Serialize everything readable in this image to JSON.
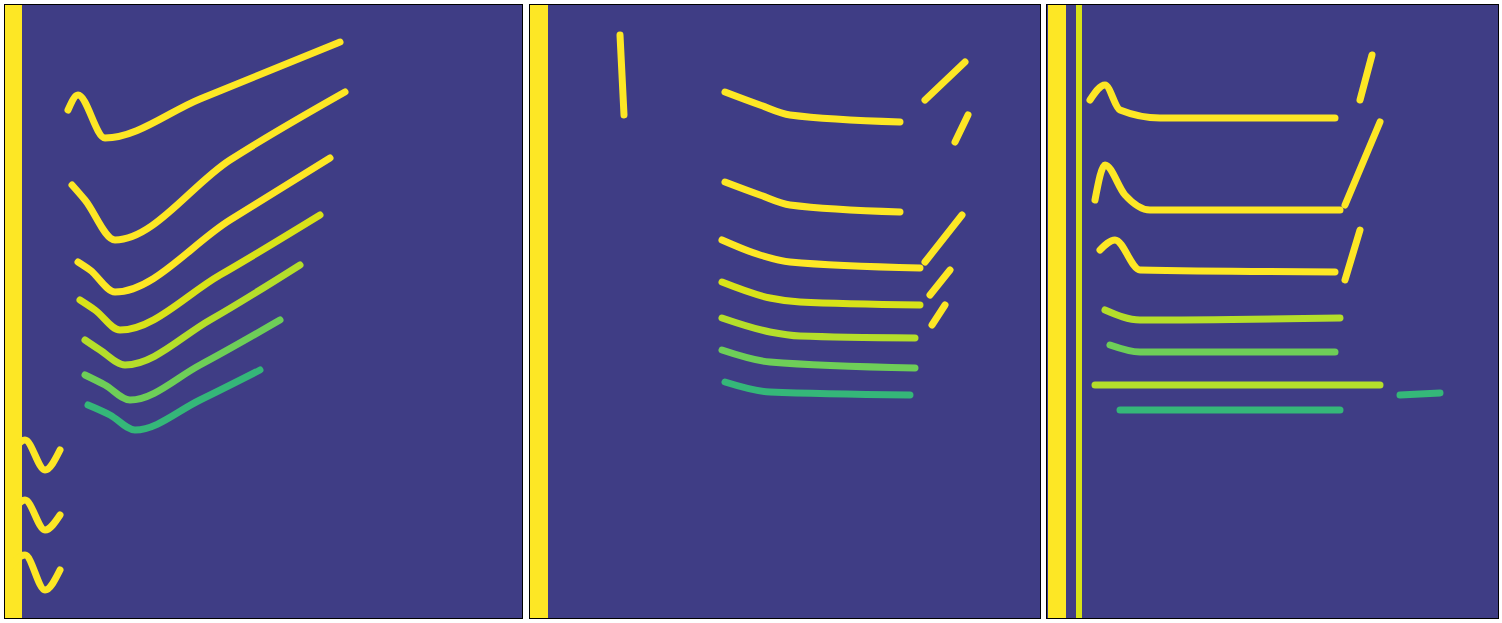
{
  "chart_data": [
    {
      "type": "line",
      "xlim": [
        0,
        517
      ],
      "ylim": [
        0,
        613
      ],
      "tick_labels": false,
      "series": [
        {
          "color": "#fde725",
          "x": [
            8,
            8
          ],
          "values": [
            0,
            613
          ]
        },
        {
          "color": "#fde725",
          "x": [
            63,
            73,
            100,
            195,
            335
          ],
          "values": [
            508,
            523,
            480,
            519,
            576
          ]
        },
        {
          "color": "#fde725",
          "x": [
            67,
            80,
            110,
            225,
            340
          ],
          "values": [
            433,
            418,
            378,
            458,
            526
          ]
        },
        {
          "color": "#fde725",
          "x": [
            73,
            85,
            110,
            225,
            325
          ],
          "values": [
            356,
            348,
            326,
            398,
            460
          ]
        },
        {
          "color": "#d8e219",
          "x": [
            75,
            90,
            115,
            215,
            315
          ],
          "values": [
            318,
            308,
            288,
            343,
            403
          ]
        },
        {
          "color": "#b5de2b",
          "x": [
            80,
            95,
            120,
            205,
            295
          ],
          "values": [
            278,
            268,
            253,
            298,
            353
          ]
        },
        {
          "color": "#6ece58",
          "x": [
            80,
            100,
            125,
            195,
            275
          ],
          "values": [
            243,
            233,
            218,
            253,
            298
          ]
        },
        {
          "color": "#35b779",
          "x": [
            83,
            105,
            130,
            195,
            255
          ],
          "values": [
            213,
            203,
            188,
            218,
            248
          ]
        },
        {
          "color": "#fde725",
          "x": [
            3,
            20,
            40,
            55
          ],
          "values": [
            158,
            178,
            148,
            168
          ]
        },
        {
          "color": "#fde725",
          "x": [
            3,
            20,
            40,
            55
          ],
          "values": [
            98,
            118,
            88,
            103
          ]
        },
        {
          "color": "#fde725",
          "x": [
            3,
            20,
            40,
            55
          ],
          "values": [
            48,
            63,
            28,
            48
          ]
        }
      ]
    },
    {
      "type": "line",
      "xlim": [
        0,
        510
      ],
      "ylim": [
        0,
        613
      ],
      "tick_labels": false,
      "series": [
        {
          "color": "#fde725",
          "x": [
            9,
            9
          ],
          "values": [
            0,
            613
          ]
        },
        {
          "color": "#fde725",
          "x": [
            90,
            94
          ],
          "values": [
            583,
            503
          ]
        },
        {
          "color": "#fde725",
          "x": [
            195,
            230,
            260,
            370
          ],
          "values": [
            526,
            513,
            503,
            496
          ]
        },
        {
          "color": "#fde725",
          "x": [
            395,
            435
          ],
          "values": [
            518,
            556
          ]
        },
        {
          "color": "#fde725",
          "x": [
            425,
            438
          ],
          "values": [
            476,
            503
          ]
        },
        {
          "color": "#fde725",
          "x": [
            195,
            230,
            260,
            370
          ],
          "values": [
            436,
            423,
            413,
            406
          ]
        },
        {
          "color": "#fde725",
          "x": [
            395,
            432
          ],
          "values": [
            356,
            403
          ]
        },
        {
          "color": "#fde725",
          "x": [
            192,
            230,
            260,
            390
          ],
          "values": [
            378,
            363,
            356,
            350
          ]
        },
        {
          "color": "#fde725",
          "x": [
            400,
            420
          ],
          "values": [
            323,
            348
          ]
        },
        {
          "color": "#d8e219",
          "x": [
            192,
            240,
            270,
            390
          ],
          "values": [
            336,
            320,
            316,
            313
          ]
        },
        {
          "color": "#fde725",
          "x": [
            402,
            415
          ],
          "values": [
            293,
            313
          ]
        },
        {
          "color": "#b5de2b",
          "x": [
            192,
            240,
            270,
            385
          ],
          "values": [
            300,
            286,
            282,
            280
          ]
        },
        {
          "color": "#6ece58",
          "x": [
            192,
            240,
            385
          ],
          "values": [
            268,
            256,
            250
          ]
        },
        {
          "color": "#35b779",
          "x": [
            195,
            240,
            380
          ],
          "values": [
            236,
            226,
            223
          ]
        }
      ]
    },
    {
      "type": "line",
      "xlim": [
        0,
        451
      ],
      "ylim": [
        0,
        613
      ],
      "tick_labels": false,
      "series": [
        {
          "color": "#fde725",
          "x": [
            10,
            10
          ],
          "values": [
            0,
            613
          ]
        },
        {
          "color": "#d8e219",
          "x": [
            32,
            32
          ],
          "values": [
            0,
            613
          ]
        },
        {
          "color": "#fde725",
          "x": [
            43,
            58,
            73,
            113,
            288
          ],
          "values": [
            518,
            533,
            508,
            500,
            500
          ]
        },
        {
          "color": "#fde725",
          "x": [
            313,
            325
          ],
          "values": [
            518,
            563
          ]
        },
        {
          "color": "#fde725",
          "x": [
            48,
            58,
            78,
            103,
            293
          ],
          "values": [
            418,
            453,
            423,
            408,
            408
          ]
        },
        {
          "color": "#fde725",
          "x": [
            298,
            333
          ],
          "values": [
            413,
            496
          ]
        },
        {
          "color": "#fde725",
          "x": [
            53,
            68,
            93,
            288
          ],
          "values": [
            368,
            378,
            348,
            346
          ]
        },
        {
          "color": "#fde725",
          "x": [
            298,
            313
          ],
          "values": [
            338,
            388
          ]
        },
        {
          "color": "#b5de2b",
          "x": [
            58,
            93,
            293
          ],
          "values": [
            308,
            298,
            300
          ]
        },
        {
          "color": "#6ece58",
          "x": [
            63,
            93,
            288
          ],
          "values": [
            273,
            266,
            266
          ]
        },
        {
          "color": "#b5de2b",
          "x": [
            48,
            93,
            333
          ],
          "values": [
            233,
            233,
            233
          ]
        },
        {
          "color": "#35b779",
          "x": [
            73,
            293
          ],
          "values": [
            208,
            208
          ]
        },
        {
          "color": "#35b779",
          "x": [
            353,
            393
          ],
          "values": [
            223,
            225
          ]
        }
      ]
    }
  ]
}
